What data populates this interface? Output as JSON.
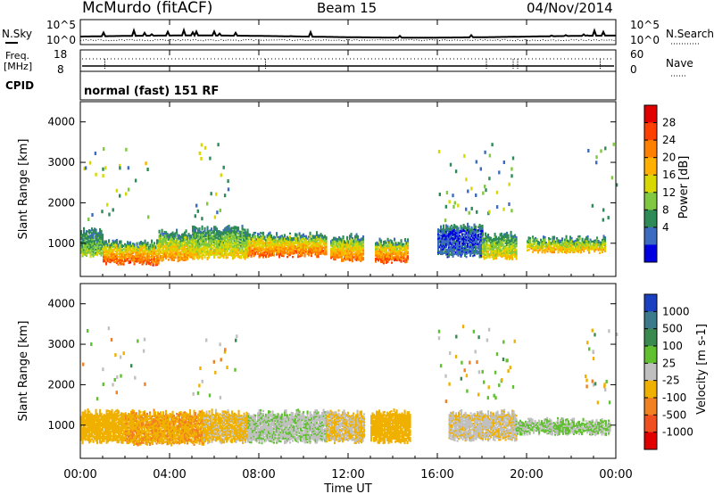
{
  "header": {
    "site": "McMurdo (fitACF)",
    "beam": "Beam 15",
    "date": "04/Nov/2014"
  },
  "noise_panel": {
    "left_label": "N.Sky",
    "right_label": "N.Search",
    "left_ticks": [
      "10^5",
      "10^0"
    ],
    "right_ticks": [
      "10^5",
      "10^0"
    ]
  },
  "freq_panel": {
    "left_label_1": "Freq.",
    "left_label_2": "[MHz]",
    "right_label": "Nave",
    "left_ticks": [
      "18",
      "8"
    ],
    "right_ticks": [
      "60",
      "0"
    ]
  },
  "cpid_panel": {
    "label": "CPID",
    "mode": "normal (fast) 151 RF"
  },
  "axes": {
    "x_label": "Time UT",
    "x_ticks": [
      "00:00",
      "04:00",
      "08:00",
      "12:00",
      "16:00",
      "20:00",
      "00:00"
    ],
    "y_label": "Slant Range [km]",
    "y_ticks": [
      "1000",
      "2000",
      "3000",
      "4000"
    ]
  },
  "power_colorbar": {
    "label": "Power [dB]",
    "ticks": [
      "28",
      "24",
      "20",
      "16",
      "12",
      "8",
      "4"
    ],
    "colors": [
      "#e00000",
      "#ff4000",
      "#ff8000",
      "#ffb000",
      "#d8d800",
      "#80c840",
      "#2e8b57",
      "#3c6cc0",
      "#0000e0"
    ]
  },
  "velocity_colorbar": {
    "label": "Velocity [m s-1]",
    "ticks": [
      "1000",
      "500",
      "100",
      "25",
      "-25",
      "-100",
      "-500",
      "-1000"
    ],
    "colors": [
      "#1a3fc0",
      "#3a7a8a",
      "#3a8a50",
      "#60c030",
      "#c0c0c0",
      "#f0b000",
      "#f08020",
      "#f05020",
      "#e00000"
    ]
  },
  "chart_data": [
    {
      "type": "heatmap",
      "title": "Power",
      "xlabel": "Time UT",
      "ylabel": "Slant Range [km]",
      "xlim": [
        0,
        24
      ],
      "ylim": [
        180,
        4500
      ],
      "colorbar": {
        "label": "Power [dB]",
        "range": [
          0,
          32
        ]
      },
      "bands": [
        {
          "t": [
            0.0,
            1.0
          ],
          "r": [
            700,
            1300
          ],
          "value": 14
        },
        {
          "t": [
            1.0,
            3.5
          ],
          "r": [
            500,
            1000
          ],
          "value": 26
        },
        {
          "t": [
            3.5,
            5.0
          ],
          "r": [
            600,
            1250
          ],
          "value": 22
        },
        {
          "t": [
            5.0,
            7.5
          ],
          "r": [
            650,
            1350
          ],
          "value": 18
        },
        {
          "t": [
            7.5,
            11.0
          ],
          "r": [
            700,
            1200
          ],
          "value": 25
        },
        {
          "t": [
            11.2,
            12.7
          ],
          "r": [
            600,
            1150
          ],
          "value": 24
        },
        {
          "t": [
            13.2,
            14.7
          ],
          "r": [
            550,
            1050
          ],
          "value": 26
        },
        {
          "t": [
            16.0,
            18.0
          ],
          "r": [
            700,
            1400
          ],
          "value": 6
        },
        {
          "t": [
            18.0,
            19.5
          ],
          "r": [
            650,
            1200
          ],
          "value": 18
        },
        {
          "t": [
            20.0,
            23.5
          ],
          "r": [
            800,
            1100
          ],
          "value": 20
        }
      ]
    },
    {
      "type": "heatmap",
      "title": "Velocity",
      "xlabel": "Time UT",
      "ylabel": "Slant Range [km]",
      "xlim": [
        0,
        24
      ],
      "ylim": [
        180,
        4500
      ],
      "colorbar": {
        "label": "Velocity [m s-1]",
        "range": [
          -1000,
          1000
        ]
      },
      "bands": [
        {
          "t": [
            0.0,
            2.0
          ],
          "r": [
            600,
            1300
          ],
          "value": -200
        },
        {
          "t": [
            2.0,
            5.5
          ],
          "r": [
            550,
            1300
          ],
          "value": -300
        },
        {
          "t": [
            5.5,
            7.5
          ],
          "r": [
            600,
            1300
          ],
          "value": -150
        },
        {
          "t": [
            7.5,
            11.0
          ],
          "r": [
            600,
            1300
          ],
          "value": 80
        },
        {
          "t": [
            11.0,
            12.7
          ],
          "r": [
            600,
            1300
          ],
          "value": -120
        },
        {
          "t": [
            13.0,
            14.8
          ],
          "r": [
            600,
            1300
          ],
          "value": -200
        },
        {
          "t": [
            16.5,
            19.5
          ],
          "r": [
            650,
            1300
          ],
          "value": -80
        },
        {
          "t": [
            19.5,
            23.7
          ],
          "r": [
            800,
            1100
          ],
          "value": 120
        }
      ]
    }
  ]
}
